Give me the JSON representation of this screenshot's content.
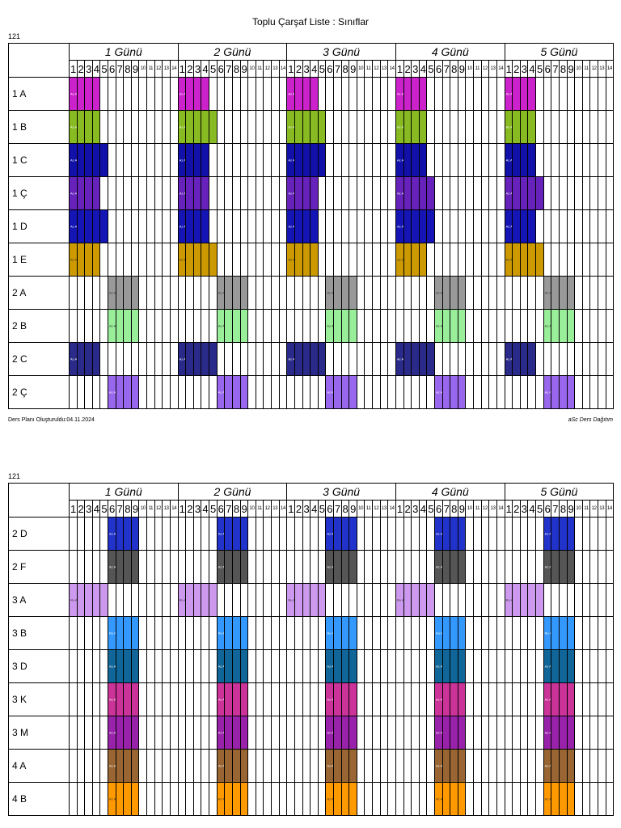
{
  "page": {
    "title": "Toplu Çarşaf Liste : Sınıflar",
    "school_code": "121",
    "footer_left": "Ders Planı Oluşturuldu:04.11.2024",
    "footer_right": "aSc Ders Dağıtım"
  },
  "days": [
    "1 Günü",
    "2 Günü",
    "3 Günü",
    "4 Günü",
    "5 Günü"
  ],
  "periods": [
    "1",
    "2",
    "3",
    "4",
    "5",
    "6",
    "7",
    "8",
    "9",
    "10",
    "11",
    "12",
    "13",
    "14"
  ],
  "colors": {
    "magenta": "#cc22cc",
    "lime": "#88bb22",
    "navy": "#1111aa",
    "purple": "#6622bb",
    "blue": "#1515b5",
    "gold": "#cc9900",
    "gray": "#999999",
    "mint": "#99ee99",
    "indigo": "#2a2a8a",
    "lavender": "#9966ee",
    "royal": "#2233cc",
    "dark_gray": "#555555",
    "lilac": "#cc99ee",
    "sky": "#3399ff",
    "teal": "#116699",
    "pink": "#cc3399",
    "violet": "#9922aa",
    "brown": "#996633",
    "orange": "#ff9900"
  },
  "tables": [
    {
      "rows": [
        {
          "label": "1 A",
          "color": "magenta",
          "blocks": [
            [
              0,
              [
                0,
                4
              ]
            ],
            [
              1,
              [
                0,
                4
              ]
            ],
            [
              2,
              [
                0,
                4
              ]
            ],
            [
              3,
              [
                0,
                4
              ]
            ],
            [
              4,
              [
                0,
                4
              ]
            ]
          ],
          "text": "Az Ay Ru F/T"
        },
        {
          "label": "1 B",
          "color": "lime",
          "blocks": [
            [
              0,
              [
                0,
                4
              ]
            ],
            [
              1,
              [
                0,
                5
              ]
            ],
            [
              2,
              [
                0,
                5
              ]
            ],
            [
              3,
              [
                0,
                4
              ]
            ],
            [
              4,
              [
                0,
                4
              ]
            ]
          ],
          "text": "Az Ay Ru H/B"
        },
        {
          "label": "1 C",
          "color": "navy",
          "blocks": [
            [
              0,
              [
                0,
                5
              ]
            ],
            [
              1,
              [
                0,
                4
              ]
            ],
            [
              2,
              [
                0,
                5
              ]
            ],
            [
              3,
              [
                0,
                4
              ]
            ],
            [
              4,
              [
                0,
                4
              ]
            ]
          ],
          "text": "Az Ay Ru F/T"
        },
        {
          "label": "1 Ç",
          "color": "purple",
          "blocks": [
            [
              0,
              [
                0,
                4
              ]
            ],
            [
              1,
              [
                0,
                4
              ]
            ],
            [
              2,
              [
                0,
                4
              ]
            ],
            [
              3,
              [
                0,
                5
              ]
            ],
            [
              4,
              [
                0,
                5
              ]
            ]
          ],
          "text": "Az Ay Ru F/T"
        },
        {
          "label": "1 D",
          "color": "blue",
          "blocks": [
            [
              0,
              [
                0,
                5
              ]
            ],
            [
              1,
              [
                0,
                4
              ]
            ],
            [
              2,
              [
                0,
                4
              ]
            ],
            [
              3,
              [
                0,
                5
              ]
            ],
            [
              4,
              [
                0,
                4
              ]
            ]
          ],
          "text": "Az Ay Ru Inf"
        },
        {
          "label": "1 E",
          "color": "gold",
          "blocks": [
            [
              0,
              [
                0,
                4
              ]
            ],
            [
              1,
              [
                0,
                5
              ]
            ],
            [
              2,
              [
                0,
                4
              ]
            ],
            [
              3,
              [
                0,
                4
              ]
            ],
            [
              4,
              [
                0,
                5
              ]
            ]
          ],
          "text": "Az Ay Ru F/T"
        },
        {
          "label": "2 A",
          "color": "gray",
          "blocks": [
            [
              0,
              [
                5,
                9
              ]
            ],
            [
              1,
              [
                5,
                9
              ]
            ],
            [
              2,
              [
                5,
                9
              ]
            ],
            [
              3,
              [
                5,
                9
              ]
            ],
            [
              4,
              [
                5,
                9
              ]
            ]
          ],
          "text": "Az Ay Ru T/i"
        },
        {
          "label": "2 B",
          "color": "mint",
          "blocks": [
            [
              0,
              [
                5,
                9
              ]
            ],
            [
              1,
              [
                5,
                9
              ]
            ],
            [
              2,
              [
                5,
                9
              ]
            ],
            [
              3,
              [
                5,
                9
              ]
            ],
            [
              4,
              [
                5,
                9
              ]
            ]
          ],
          "text": "Az Ay Ru F/T"
        },
        {
          "label": "2 C",
          "color": "indigo",
          "blocks": [
            [
              0,
              [
                0,
                4
              ]
            ],
            [
              1,
              [
                0,
                5
              ]
            ],
            [
              2,
              [
                0,
                5
              ]
            ],
            [
              3,
              [
                0,
                5
              ]
            ],
            [
              4,
              [
                0,
                4
              ]
            ]
          ],
          "text": "Az Ay Ru F/T"
        },
        {
          "label": "2 Ç",
          "color": "lavender",
          "blocks": [
            [
              0,
              [
                5,
                9
              ]
            ],
            [
              1,
              [
                5,
                9
              ]
            ],
            [
              2,
              [
                5,
                9
              ]
            ],
            [
              3,
              [
                5,
                9
              ]
            ],
            [
              4,
              [
                5,
                9
              ]
            ]
          ],
          "text": "Az Ay Ru F/T"
        }
      ]
    },
    {
      "rows": [
        {
          "label": "2 D",
          "color": "royal",
          "blocks": [
            [
              0,
              [
                5,
                9
              ]
            ],
            [
              1,
              [
                5,
                9
              ]
            ],
            [
              2,
              [
                5,
                9
              ]
            ],
            [
              3,
              [
                5,
                9
              ]
            ],
            [
              4,
              [
                5,
                9
              ]
            ]
          ],
          "text": "Az Ay Ru F/T"
        },
        {
          "label": "2 F",
          "color": "dark_gray",
          "blocks": [
            [
              0,
              [
                5,
                9
              ]
            ],
            [
              1,
              [
                5,
                9
              ]
            ],
            [
              2,
              [
                5,
                9
              ]
            ],
            [
              3,
              [
                5,
                9
              ]
            ],
            [
              4,
              [
                5,
                9
              ]
            ]
          ],
          "text": "Az Ay Ru F/T"
        },
        {
          "label": "3 A",
          "color": "lilac",
          "blocks": [
            [
              0,
              [
                0,
                5
              ]
            ],
            [
              1,
              [
                0,
                5
              ]
            ],
            [
              2,
              [
                0,
                5
              ]
            ],
            [
              3,
              [
                0,
                5
              ]
            ],
            [
              4,
              [
                0,
                5
              ]
            ]
          ],
          "text": "Ru Az Ay Az Re"
        },
        {
          "label": "3 B",
          "color": "sky",
          "blocks": [
            [
              0,
              [
                5,
                9
              ]
            ],
            [
              1,
              [
                5,
                9
              ]
            ],
            [
              2,
              [
                5,
                9
              ]
            ],
            [
              3,
              [
                5,
                9
              ]
            ],
            [
              4,
              [
                5,
                9
              ]
            ]
          ],
          "text": "Ru Re Az Ay T/i"
        },
        {
          "label": "3 D",
          "color": "teal",
          "blocks": [
            [
              0,
              [
                5,
                9
              ]
            ],
            [
              1,
              [
                5,
                9
              ]
            ],
            [
              2,
              [
                5,
                9
              ]
            ],
            [
              3,
              [
                5,
                9
              ]
            ],
            [
              4,
              [
                5,
                9
              ]
            ]
          ],
          "text": "Az Ay H/B Ru Tex"
        },
        {
          "label": "3 K",
          "color": "pink",
          "blocks": [
            [
              0,
              [
                5,
                9
              ]
            ],
            [
              1,
              [
                5,
                9
              ]
            ],
            [
              2,
              [
                5,
                9
              ]
            ],
            [
              3,
              [
                5,
                9
              ]
            ],
            [
              4,
              [
                5,
                9
              ]
            ]
          ],
          "text": "Az Ay Ru T/i"
        },
        {
          "label": "3 M",
          "color": "violet",
          "blocks": [
            [
              0,
              [
                5,
                9
              ]
            ],
            [
              1,
              [
                5,
                9
              ]
            ],
            [
              2,
              [
                5,
                9
              ]
            ],
            [
              3,
              [
                5,
                9
              ]
            ],
            [
              4,
              [
                5,
                9
              ]
            ]
          ],
          "text": "Az Ay Ru Tex"
        },
        {
          "label": "4 A",
          "color": "brown",
          "blocks": [
            [
              0,
              [
                5,
                9
              ]
            ],
            [
              1,
              [
                5,
                9
              ]
            ],
            [
              2,
              [
                5,
                9
              ]
            ],
            [
              3,
              [
                5,
                9
              ]
            ],
            [
              4,
              [
                5,
                9
              ]
            ]
          ],
          "text": "Az Ay Ru F/T"
        },
        {
          "label": "4 B",
          "color": "orange",
          "blocks": [
            [
              0,
              [
                5,
                9
              ]
            ],
            [
              1,
              [
                5,
                9
              ]
            ],
            [
              2,
              [
                5,
                9
              ]
            ],
            [
              3,
              [
                5,
                9
              ]
            ],
            [
              4,
              [
                5,
                9
              ]
            ]
          ],
          "text": "Az Ay Ru H/B"
        }
      ]
    }
  ]
}
